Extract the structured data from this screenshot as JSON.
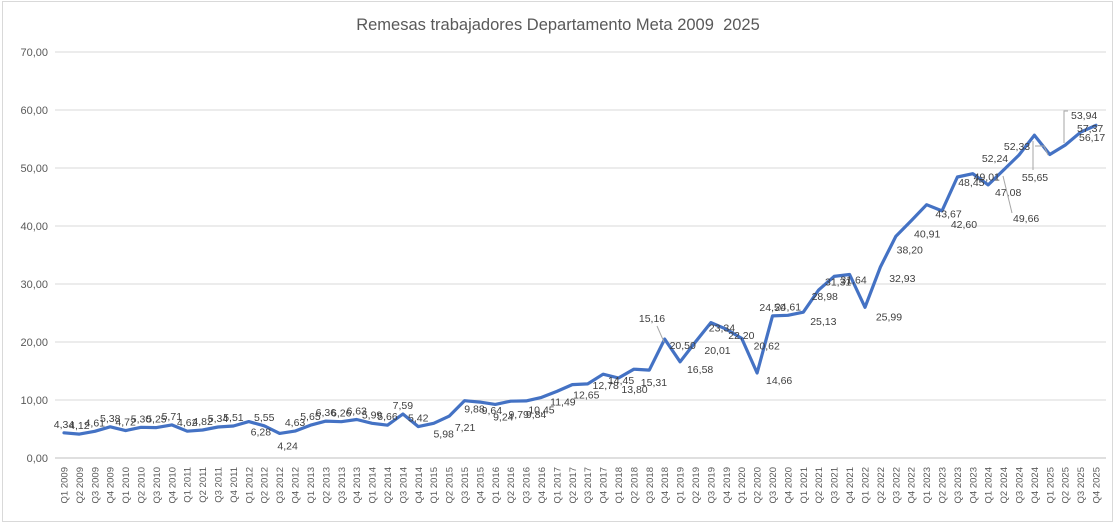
{
  "title": "Remesas trabajadores Departamento Meta 2009  2025",
  "chart_data": {
    "type": "line",
    "title": "Remesas trabajadores Departamento Meta 2009  2025",
    "legend": "none",
    "grid": "horizontal",
    "ylim": [
      0,
      70
    ],
    "y_ticks": [
      "0,00",
      "10,00",
      "20,00",
      "30,00",
      "40,00",
      "50,00",
      "60,00",
      "70,00"
    ],
    "series_color": "#4472C4",
    "categories": [
      "Q1 2009",
      "Q2 2009",
      "Q3 2009",
      "Q4 2009",
      "Q1 2010",
      "Q2 2010",
      "Q3 2010",
      "Q4 2010",
      "Q1 2011",
      "Q2 2011",
      "Q3 2011",
      "Q4 2011",
      "Q1 2012",
      "Q2 2012",
      "Q3 2012",
      "Q4 2012",
      "Q1 2013",
      "Q2 2013",
      "Q3 2013",
      "Q4 2013",
      "Q1 2014",
      "Q2 2014",
      "Q3 2014",
      "Q4 2014",
      "Q1 2015",
      "Q2 2015",
      "Q3 2015",
      "Q4 2015",
      "Q1 2016",
      "Q2 2016",
      "Q3 2016",
      "Q4 2016",
      "Q1 2017",
      "Q2 2017",
      "Q3 2017",
      "Q4 2017",
      "Q1 2018",
      "Q2 2018",
      "Q3 2018",
      "Q4 2018",
      "Q1 2019",
      "Q2 2019",
      "Q3 2019",
      "Q4 2019",
      "Q1 2020",
      "Q2 2020",
      "Q3 2020",
      "Q4 2020",
      "Q1 2021",
      "Q2 2021",
      "Q3 2021",
      "Q4 2021",
      "Q1 2022",
      "Q2 2022",
      "Q3 2022",
      "Q4 2022",
      "Q1 2023",
      "Q2 2023",
      "Q3 2023",
      "Q4 2023",
      "Q1 2024",
      "Q2 2024",
      "Q3 2024",
      "Q4 2024",
      "Q1 2025",
      "Q2 2025",
      "Q3 2025",
      "Q4 2025"
    ],
    "values_display": [
      "4,34",
      "4,12",
      "4,61",
      "5,38",
      "4,72",
      "5,30",
      "5,25",
      "5,71",
      "4,62",
      "4,82",
      "5,34",
      "5,51",
      "6,28",
      "5,55",
      "4,24",
      "4,63",
      "5,65",
      "6,36",
      "6,26",
      "6,63",
      "5,99",
      "5,66",
      "7,59",
      "5,42",
      "5,98",
      "7,21",
      "9,88",
      "9,64",
      "9,24",
      "9,79",
      "9,84",
      "10,45",
      "11,49",
      "12,65",
      "12,78",
      "14,45",
      "13,80",
      "15,31",
      "15,16",
      "20,50",
      "16,58",
      "20,01",
      "23,34",
      "22,20",
      "20,62",
      "14,66",
      "24,50",
      "24,61",
      "25,13",
      "28,98",
      "31,31",
      "31,64",
      "25,99",
      "32,93",
      "38,20",
      "40,91",
      "43,67",
      "42,60",
      "48,45",
      "49,01",
      "47,08",
      "49,66",
      "52,24",
      "55,65",
      "52,33",
      "53,94",
      "56,17",
      "57,37"
    ]
  },
  "colors": {
    "line": "#4472C4",
    "grid": "#D9D9D9",
    "axis": "#BFBFBF",
    "tick_text": "#595959",
    "label_text": "#404040",
    "leader": "#A6A6A6",
    "border": "#D9D9D9"
  }
}
